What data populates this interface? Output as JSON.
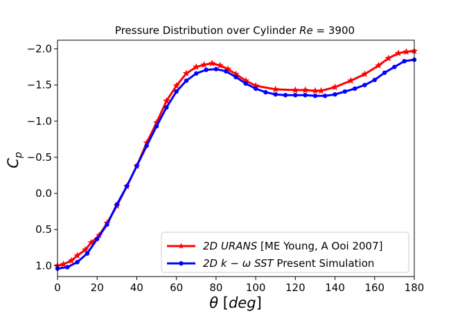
{
  "chart_data": {
    "type": "line",
    "title": "Pressure Distribution over Cylinder Re = 3900",
    "xlabel": "θ  [deg]",
    "ylabel": "Cp",
    "xlim": [
      0,
      180
    ],
    "ylim": [
      1.15,
      -2.12
    ],
    "y_inverted": true,
    "xticks": [
      0,
      20,
      40,
      60,
      80,
      100,
      120,
      140,
      160,
      180
    ],
    "xtick_labels": [
      "0",
      "20",
      "40",
      "60",
      "80",
      "100",
      "120",
      "140",
      "160",
      "180"
    ],
    "yticks": [
      1.0,
      0.5,
      0.0,
      -0.5,
      -1.0,
      -1.5,
      -2.0
    ],
    "ytick_labels": [
      "1.0",
      "0.5",
      "0.0",
      "−0.5",
      "−1.0",
      "−1.5",
      "−2.0"
    ],
    "legend_position": "lower-right",
    "series": [
      {
        "name": "2D URANS [ME Young, A Ooi 2007]",
        "color": "#ff0000",
        "marker": "star",
        "x": [
          0,
          3,
          7,
          10,
          14,
          17,
          21,
          25,
          30,
          35,
          40,
          45,
          50,
          55,
          60,
          65,
          70,
          74,
          78,
          82,
          86,
          90,
          95,
          100,
          110,
          120,
          125,
          130,
          133,
          140,
          148,
          155,
          162,
          167,
          172,
          176,
          180
        ],
        "y": [
          1.0,
          0.98,
          0.93,
          0.86,
          0.78,
          0.68,
          0.58,
          0.41,
          0.17,
          -0.1,
          -0.38,
          -0.7,
          -0.98,
          -1.28,
          -1.49,
          -1.66,
          -1.75,
          -1.78,
          -1.8,
          -1.77,
          -1.72,
          -1.65,
          -1.56,
          -1.49,
          -1.44,
          -1.43,
          -1.43,
          -1.42,
          -1.42,
          -1.47,
          -1.56,
          -1.65,
          -1.77,
          -1.87,
          -1.94,
          -1.96,
          -1.97
        ]
      },
      {
        "name": "2D k − ω SST Present Simulation",
        "color": "#0000ff",
        "marker": "circle",
        "x": [
          0,
          5,
          10,
          15,
          20,
          25,
          30,
          35,
          40,
          45,
          50,
          55,
          60,
          65,
          70,
          75,
          80,
          85,
          90,
          95,
          100,
          105,
          110,
          115,
          120,
          125,
          130,
          135,
          140,
          145,
          150,
          155,
          160,
          165,
          170,
          175,
          180
        ],
        "y": [
          1.04,
          1.02,
          0.95,
          0.83,
          0.63,
          0.43,
          0.15,
          -0.1,
          -0.38,
          -0.66,
          -0.93,
          -1.19,
          -1.41,
          -1.56,
          -1.66,
          -1.71,
          -1.72,
          -1.69,
          -1.61,
          -1.52,
          -1.45,
          -1.4,
          -1.37,
          -1.36,
          -1.36,
          -1.36,
          -1.35,
          -1.35,
          -1.37,
          -1.41,
          -1.45,
          -1.5,
          -1.57,
          -1.67,
          -1.75,
          -1.83,
          -1.85
        ]
      }
    ],
    "legend_labels": [
      {
        "italic": "2D URANS",
        "rest": " [ME Young, A Ooi 2007]"
      },
      {
        "italic": "2D k − ω SST",
        "rest": " Present Simulation"
      }
    ]
  }
}
